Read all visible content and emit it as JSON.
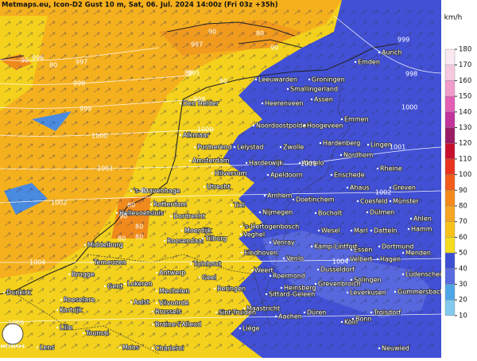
{
  "header": {
    "title": "Metmaps.eu, Icon-D2 Gust 10 m, Sat, 06. Jul. 2024 14:00z (Fri 03z +35h)",
    "logo": "METMAPS"
  },
  "legend": {
    "unit": "km/h",
    "levels": [
      180,
      170,
      160,
      150,
      140,
      130,
      120,
      110,
      100,
      90,
      80,
      70,
      60,
      50,
      40,
      30,
      20,
      10
    ],
    "colors": [
      "#fbe9f2",
      "#f6c8e0",
      "#f09ccb",
      "#e25fb4",
      "#c2339c",
      "#9a1c64",
      "#c8102e",
      "#e8331e",
      "#f15c1a",
      "#f58a1c",
      "#f6a623",
      "#f8c21a",
      "#f5dc1e",
      "#3d4fd2",
      "#5a6be0",
      "#4fa6e6",
      "#82c9ef",
      "#bfe3f6"
    ]
  },
  "cities": [
    "Aurich",
    "Emden",
    "Leeuwarden",
    "Groningen",
    "Smallingerland",
    "Assen",
    "Heerenveen",
    "Den Helder",
    "Emmen",
    "Noordoostpolder",
    "Hoogeveen",
    "Alkmaar",
    "Purmerend",
    "Lelystad",
    "Zwolle",
    "Hardenberg",
    "Lingen",
    "Nordhorn",
    "Amsterdam",
    "Harderwijk",
    "Almelo",
    "Rheine",
    "Hilversum",
    "Apeldoorn",
    "Enschede",
    "'s-Gravenhage",
    "Utrecht",
    "Ahaus",
    "Greven",
    "Arnhem",
    "Doetinchem",
    "Coesfeld",
    "Münster",
    "Rotterdam",
    "Hellevoetsluis",
    "Dordrecht",
    "Tiel",
    "Nijmegen",
    "Bocholt",
    "Dülmen",
    "Ahlen",
    "'s-Hertogenbosch",
    "Veghel",
    "Moerdijk",
    "Wesel",
    "Marl",
    "Datteln",
    "Hamm",
    "Roosendaal",
    "Tilburg",
    "Middelburg",
    "Venray",
    "Kamp-Lintfort",
    "Dortmund",
    "Essen",
    "Menden",
    "Eindhoven",
    "Terneuzen",
    "Turnhout",
    "Venlo",
    "Velbert",
    "Hagen",
    "Brugge",
    "Antwerp",
    "Geel",
    "Weert",
    "Roermond",
    "Dusseldorf",
    "Lüdenscheid",
    "Gent",
    "Lokeren",
    "Mechelen",
    "Beringen",
    "Heinsberg",
    "Grevenbroich",
    "Solingen",
    "Dunkirk",
    "Roeselare",
    "Aalst",
    "Vilvoorde",
    "Sittard-Geleen",
    "Leverkusen",
    "Gummersbach",
    "Kortrijk",
    "Brussels",
    "Maastricht",
    "Düren",
    "Troisdorf",
    "Sint-Truiden",
    "Aachen",
    "Köln",
    "Bonn",
    "Lille",
    "Tournai",
    "Braine-l'Alleud",
    "Liège",
    "Lens",
    "Mons",
    "Charleroi",
    "Neuwied"
  ],
  "isobars": [
    996,
    997,
    998,
    999,
    1000,
    1001,
    1002,
    1004,
    1006,
    997,
    995,
    998,
    1000,
    999,
    998,
    1000,
    1001,
    1002,
    1001,
    1004
  ],
  "gust_labels": [
    90,
    80,
    90,
    80,
    80,
    90,
    90,
    80,
    90,
    80,
    80,
    80,
    90
  ]
}
